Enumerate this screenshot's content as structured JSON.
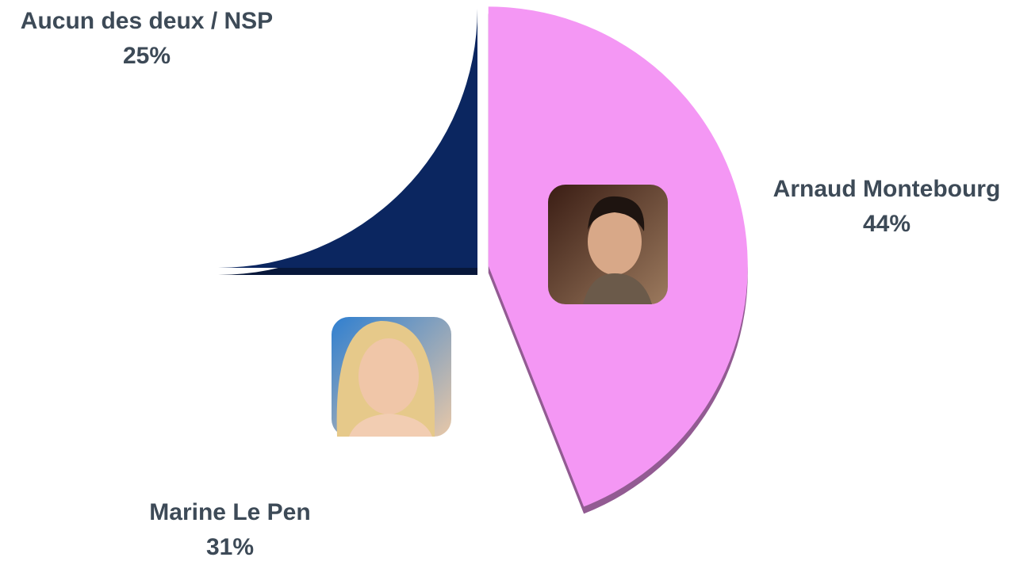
{
  "chart_data": {
    "type": "pie",
    "categories": [
      "Arnaud Montebourg",
      "Marine Le Pen",
      "Aucun des deux / NSP"
    ],
    "values": [
      44,
      31,
      25
    ],
    "value_labels": [
      "44%",
      "31%",
      "25%"
    ],
    "colors": [
      "#f497f4",
      "#0b2660",
      "#bfbfbf"
    ],
    "explode": [
      true,
      false,
      false
    ]
  }
}
